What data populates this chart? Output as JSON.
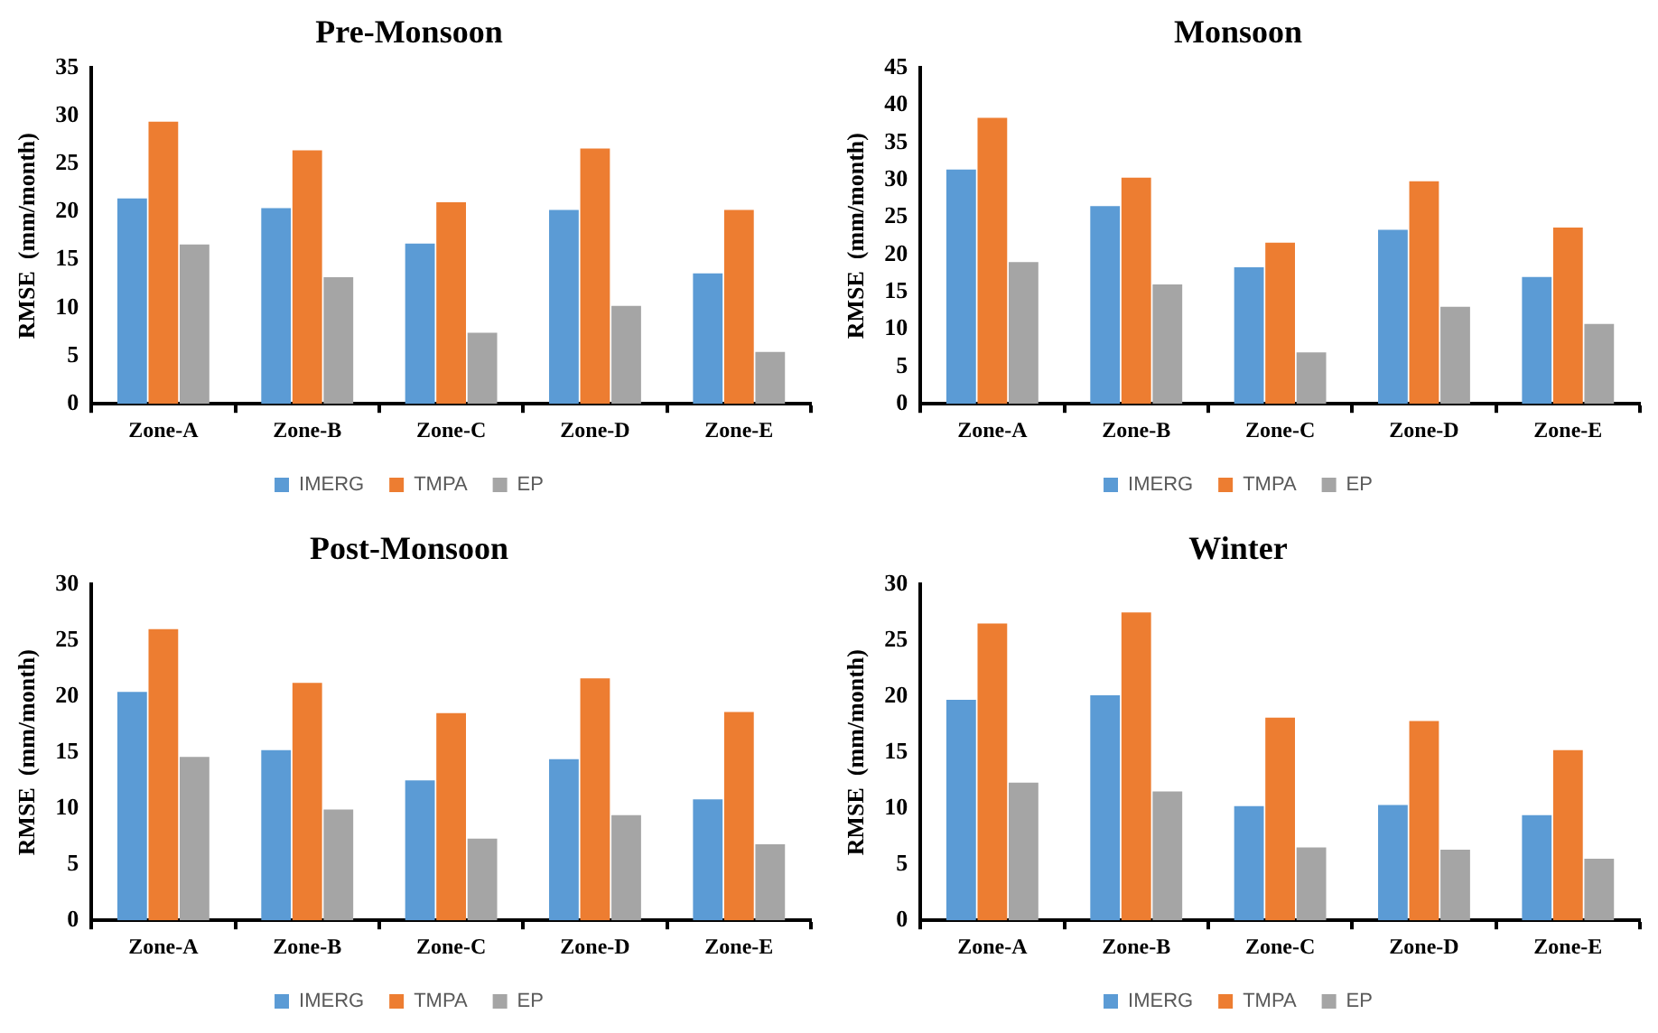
{
  "chart_data": [
    {
      "type": "bar",
      "title": "Pre-Monsoon",
      "ylabel": "RMSE  (mm/month)",
      "categories": [
        "Zone-A",
        "Zone-B",
        "Zone-C",
        "Zone-D",
        "Zone-E"
      ],
      "series": [
        {
          "name": "IMERG",
          "color": "#5b9bd5",
          "values": [
            21.4,
            20.4,
            16.7,
            20.2,
            13.6
          ]
        },
        {
          "name": "TMPA",
          "color": "#ed7d31",
          "values": [
            29.4,
            26.4,
            21.0,
            26.6,
            20.2
          ]
        },
        {
          "name": "EP",
          "color": "#a5a5a5",
          "values": [
            16.6,
            13.2,
            7.4,
            10.2,
            5.4
          ]
        }
      ],
      "ylim": [
        0,
        35
      ],
      "yticks": [
        0,
        5,
        10,
        15,
        20,
        25,
        30,
        35
      ],
      "grid": false,
      "legend": "bottom"
    },
    {
      "type": "bar",
      "title": "Monsoon",
      "ylabel": "RMSE  (mm/month)",
      "categories": [
        "Zone-A",
        "Zone-B",
        "Zone-C",
        "Zone-D",
        "Zone-E"
      ],
      "series": [
        {
          "name": "IMERG",
          "color": "#5b9bd5",
          "values": [
            31.4,
            26.5,
            18.3,
            23.3,
            17.0
          ]
        },
        {
          "name": "TMPA",
          "color": "#ed7d31",
          "values": [
            38.3,
            30.3,
            21.6,
            29.8,
            23.6
          ]
        },
        {
          "name": "EP",
          "color": "#a5a5a5",
          "values": [
            19.0,
            16.0,
            6.9,
            13.0,
            10.7
          ]
        }
      ],
      "ylim": [
        0,
        45
      ],
      "yticks": [
        0,
        5,
        10,
        15,
        20,
        25,
        30,
        35,
        40,
        45
      ],
      "grid": false,
      "legend": "bottom"
    },
    {
      "type": "bar",
      "title": "Post-Monsoon",
      "ylabel": "RMSE  (mm/month)",
      "categories": [
        "Zone-A",
        "Zone-B",
        "Zone-C",
        "Zone-D",
        "Zone-E"
      ],
      "series": [
        {
          "name": "IMERG",
          "color": "#5b9bd5",
          "values": [
            20.4,
            15.2,
            12.5,
            14.4,
            10.8
          ]
        },
        {
          "name": "TMPA",
          "color": "#ed7d31",
          "values": [
            26.0,
            21.2,
            18.5,
            21.6,
            18.6
          ]
        },
        {
          "name": "EP",
          "color": "#a5a5a5",
          "values": [
            14.6,
            9.9,
            7.3,
            9.4,
            6.8
          ]
        }
      ],
      "ylim": [
        0,
        30
      ],
      "yticks": [
        0,
        5,
        10,
        15,
        20,
        25,
        30
      ],
      "grid": false,
      "legend": "bottom"
    },
    {
      "type": "bar",
      "title": "Winter",
      "ylabel": "RMSE  (mm/month)",
      "categories": [
        "Zone-A",
        "Zone-B",
        "Zone-C",
        "Zone-D",
        "Zone-E"
      ],
      "series": [
        {
          "name": "IMERG",
          "color": "#5b9bd5",
          "values": [
            19.7,
            20.1,
            10.2,
            10.3,
            9.4
          ]
        },
        {
          "name": "TMPA",
          "color": "#ed7d31",
          "values": [
            26.5,
            27.5,
            18.1,
            17.8,
            15.2
          ]
        },
        {
          "name": "EP",
          "color": "#a5a5a5",
          "values": [
            12.3,
            11.5,
            6.5,
            6.3,
            5.5
          ]
        }
      ],
      "ylim": [
        0,
        30
      ],
      "yticks": [
        0,
        5,
        10,
        15,
        20,
        25,
        30
      ],
      "grid": false,
      "legend": "bottom"
    }
  ]
}
